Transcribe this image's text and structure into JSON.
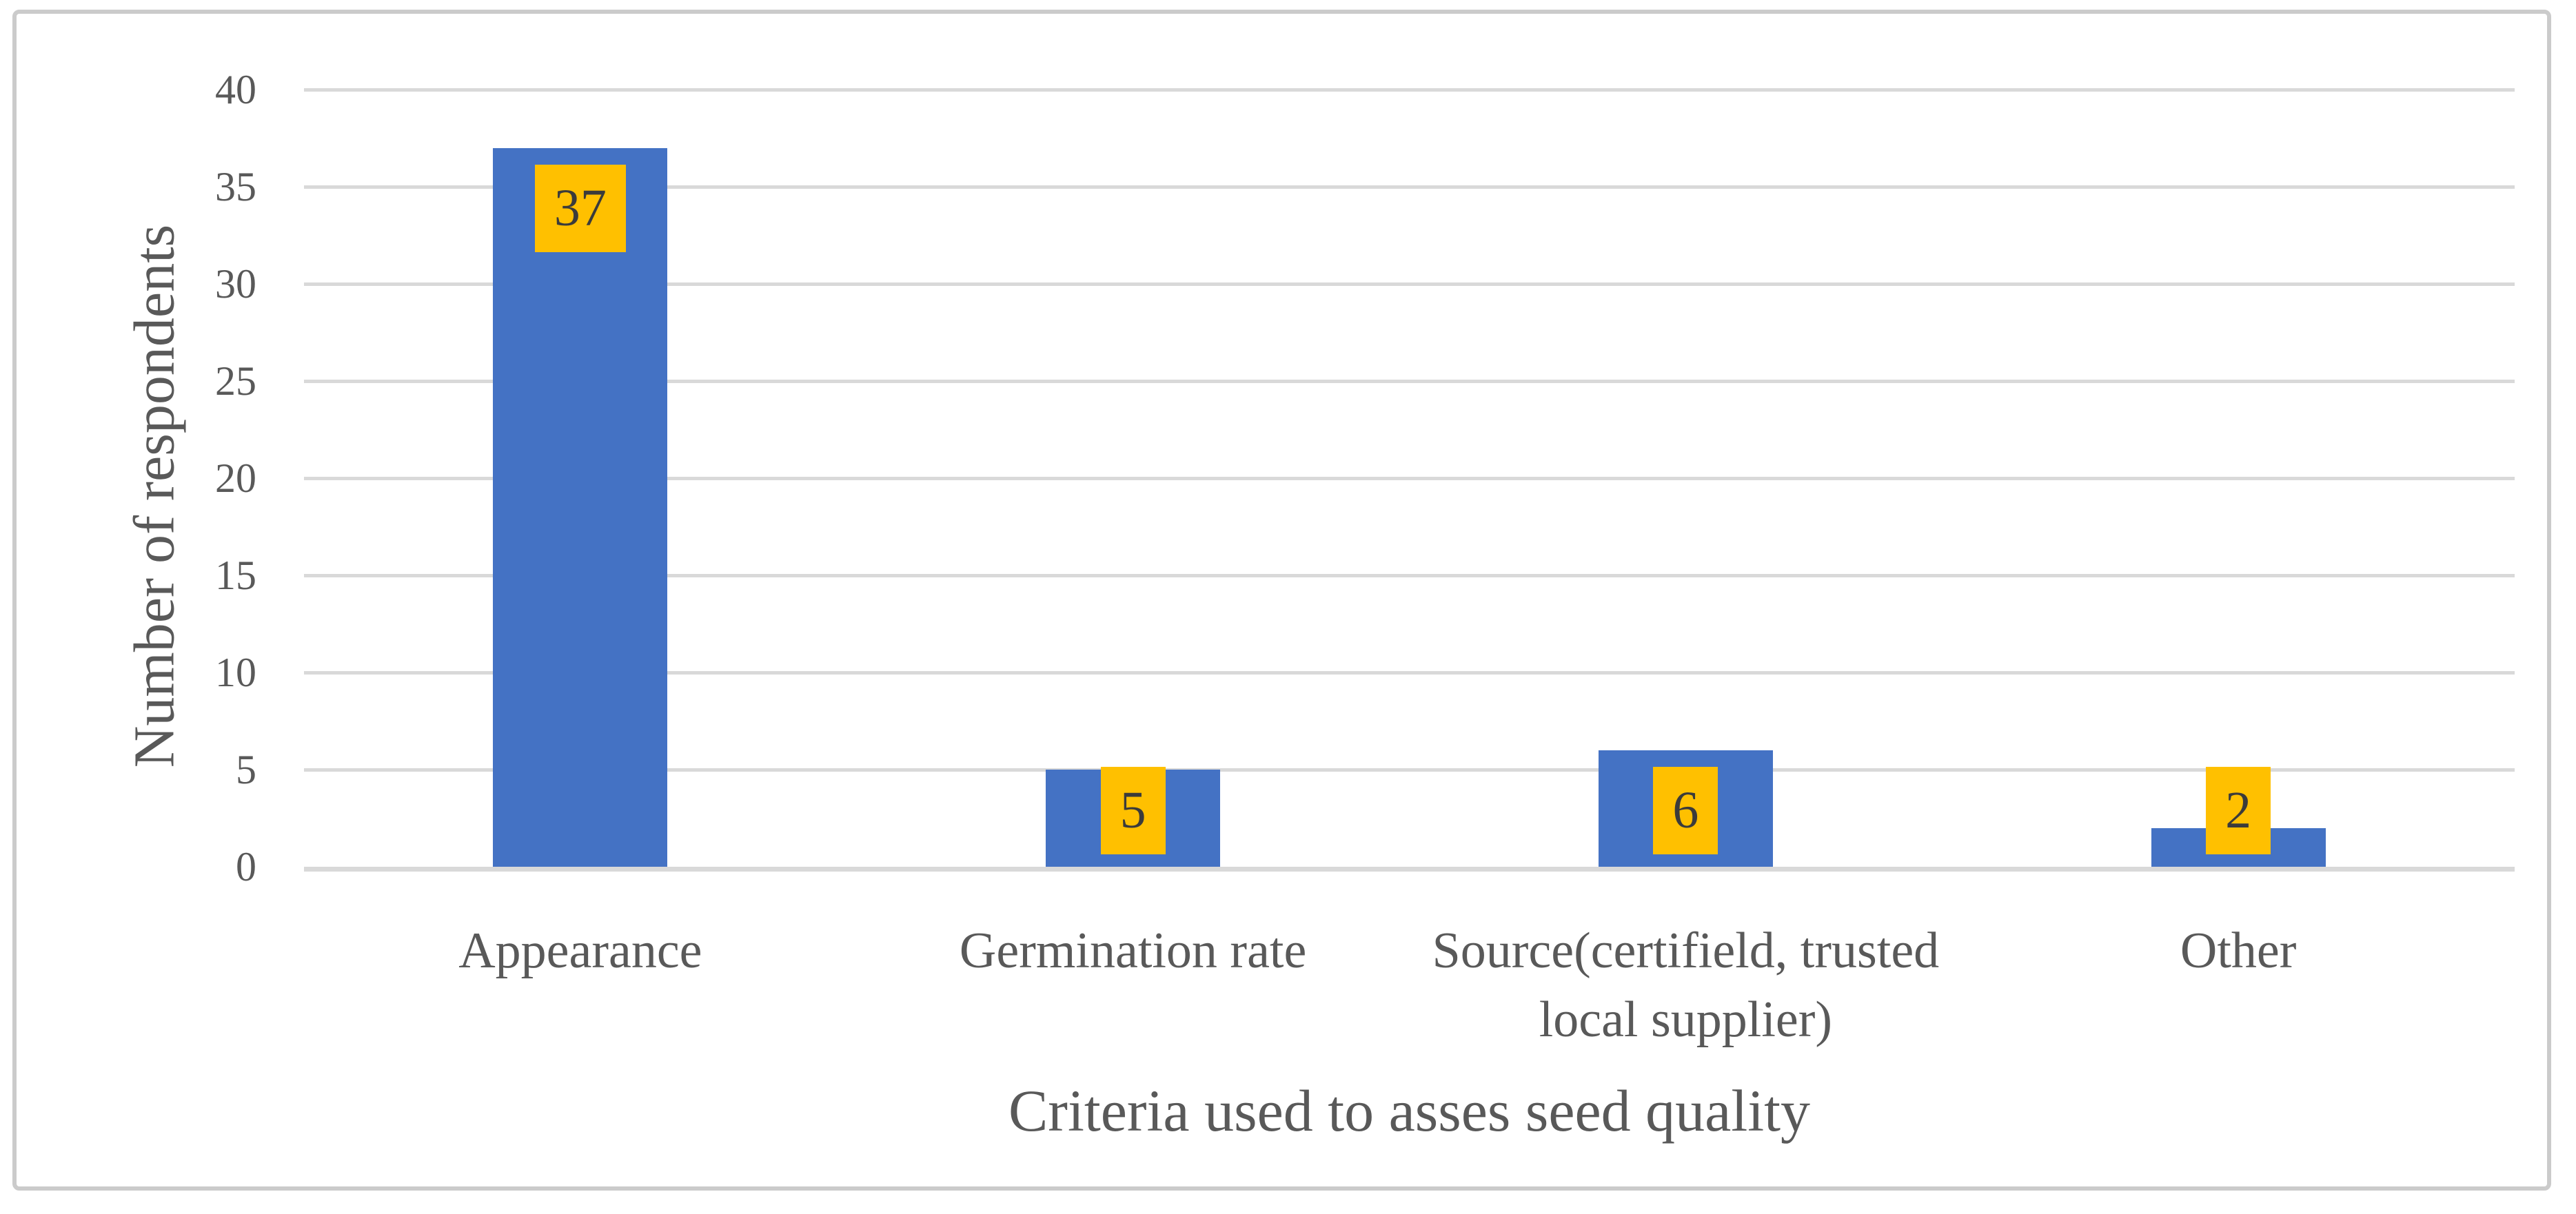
{
  "figure": {
    "background_color": "#FFFFFF",
    "border_color": "#CBCBCB"
  },
  "chart_data": {
    "type": "bar",
    "title": "",
    "categories": [
      "Appearance",
      "Germination rate",
      "Source(certifield, trusted local supplier)",
      "Other"
    ],
    "values": [
      37,
      5,
      6,
      2
    ],
    "data_labels": [
      "37",
      "5",
      "6",
      "2"
    ],
    "series": [
      {
        "name": "Number of respondents",
        "values": [
          37,
          5,
          6,
          2
        ]
      }
    ],
    "xlabel": "Criteria used to asses seed quality",
    "ylabel": "Number of respondents",
    "ylim": [
      0,
      40
    ],
    "yticks": [
      0,
      5,
      10,
      15,
      20,
      25,
      30,
      35,
      40
    ],
    "grid": "horizontal gridlines on",
    "legend": "none",
    "colors": {
      "bar": "#4472C4",
      "data_label_fill": "#FFC000",
      "data_label_text": "#3B3B3B",
      "axis_text": "#595959",
      "gridline": "#D9D9D9"
    }
  }
}
